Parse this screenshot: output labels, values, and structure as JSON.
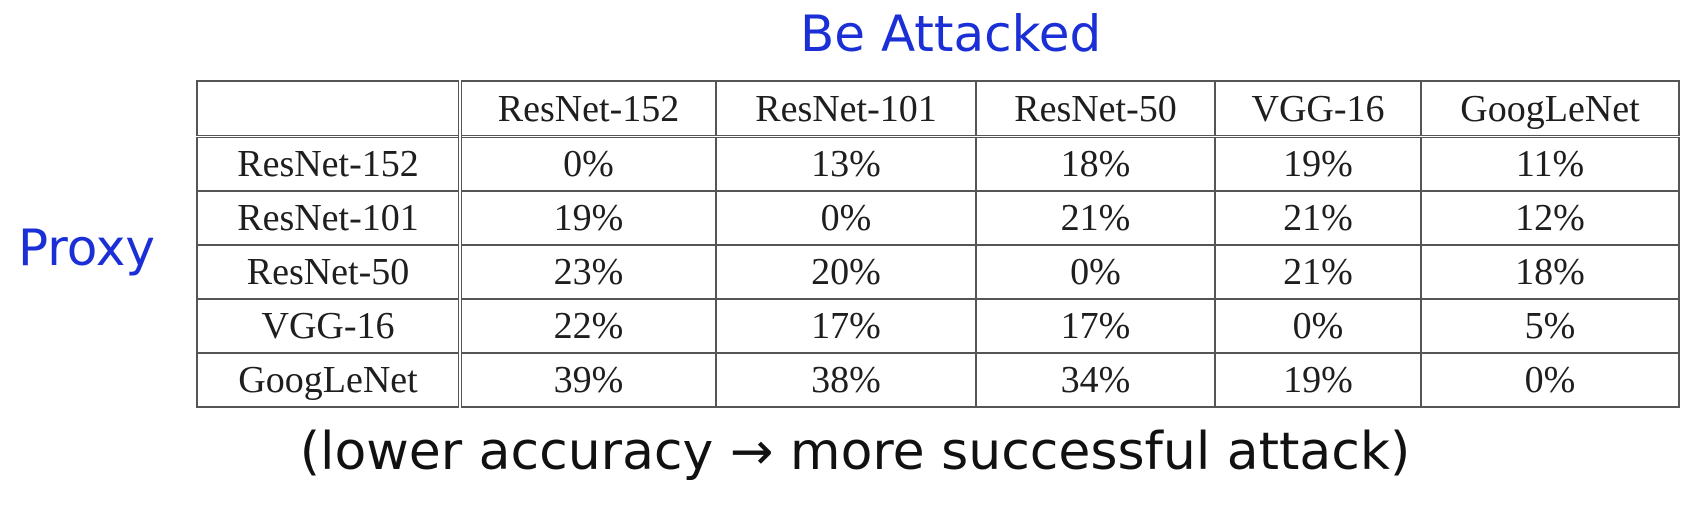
{
  "headings": {
    "columns_label": "Be Attacked",
    "rows_label": "Proxy"
  },
  "table": {
    "corner": "",
    "columns": [
      "ResNet-152",
      "ResNet-101",
      "ResNet-50",
      "VGG-16",
      "GoogLeNet"
    ],
    "rows": [
      {
        "name": "ResNet-152",
        "values": [
          "0%",
          "13%",
          "18%",
          "19%",
          "11%"
        ]
      },
      {
        "name": "ResNet-101",
        "values": [
          "19%",
          "0%",
          "21%",
          "21%",
          "12%"
        ]
      },
      {
        "name": "ResNet-50",
        "values": [
          "23%",
          "20%",
          "0%",
          "21%",
          "18%"
        ]
      },
      {
        "name": "VGG-16",
        "values": [
          "22%",
          "17%",
          "17%",
          "0%",
          "5%"
        ]
      },
      {
        "name": "GoogLeNet",
        "values": [
          "39%",
          "38%",
          "34%",
          "19%",
          "0%"
        ]
      }
    ]
  },
  "caption": "(lower accuracy → more successful attack)",
  "colors": {
    "heading": "#1a2fd6",
    "text": "#1e1e1e"
  }
}
